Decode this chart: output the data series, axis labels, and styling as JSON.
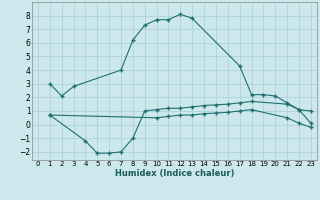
{
  "xlabel": "Humidex (Indice chaleur)",
  "background_color": "#cce8ed",
  "grid_color": "#aacdd5",
  "line_color": "#1e7070",
  "xlim": [
    -0.5,
    23.5
  ],
  "ylim": [
    -2.6,
    9.0
  ],
  "yticks": [
    -2,
    -1,
    0,
    1,
    2,
    3,
    4,
    5,
    6,
    7,
    8
  ],
  "xticks": [
    0,
    1,
    2,
    3,
    4,
    5,
    6,
    7,
    8,
    9,
    10,
    11,
    12,
    13,
    14,
    15,
    16,
    17,
    18,
    19,
    20,
    21,
    22,
    23
  ],
  "line1_x": [
    1,
    2,
    3,
    7,
    8,
    9,
    10,
    11,
    12,
    13,
    17,
    18,
    19,
    20,
    21,
    22,
    23
  ],
  "line1_y": [
    3.0,
    2.1,
    2.8,
    4.0,
    6.2,
    7.3,
    7.7,
    7.7,
    8.1,
    7.8,
    4.3,
    2.2,
    2.2,
    2.1,
    1.6,
    1.1,
    1.0
  ],
  "line2_x": [
    1,
    4,
    5,
    6,
    7,
    8,
    9,
    10,
    11,
    12,
    13,
    14,
    15,
    16,
    17,
    18,
    21,
    22,
    23
  ],
  "line2_y": [
    0.7,
    -1.2,
    -2.1,
    -2.1,
    -2.0,
    -1.0,
    1.0,
    1.1,
    1.2,
    1.2,
    1.3,
    1.4,
    1.45,
    1.5,
    1.6,
    1.7,
    1.5,
    1.1,
    0.1
  ],
  "line3_x": [
    1,
    10,
    11,
    12,
    13,
    14,
    15,
    16,
    17,
    18,
    21,
    22,
    23
  ],
  "line3_y": [
    0.7,
    0.5,
    0.6,
    0.7,
    0.7,
    0.8,
    0.85,
    0.9,
    1.0,
    1.1,
    0.5,
    0.1,
    -0.2
  ]
}
